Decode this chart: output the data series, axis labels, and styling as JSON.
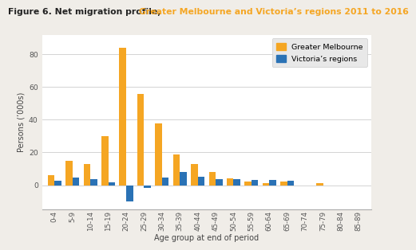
{
  "title_black": "Figure 6. Net migration profile, ",
  "title_orange": "Greater Melbourne and Victoria’s regions 2011 to 2016",
  "age_groups": [
    "0-4",
    "5-9",
    "10-14",
    "15-19",
    "20-24",
    "25-29",
    "30-34",
    "35-39",
    "40-44",
    "45-49",
    "50-54",
    "55-59",
    "60-64",
    "65-69",
    "70-74",
    "75-79",
    "80-84",
    "85-89"
  ],
  "melbourne": [
    6,
    15,
    13,
    30,
    84,
    56,
    38,
    19,
    13,
    8,
    4,
    2,
    1,
    2,
    0,
    1,
    0,
    0
  ],
  "victoria": [
    2.5,
    4.5,
    3.5,
    1.5,
    -10,
    -1.5,
    4.5,
    8,
    5,
    3.5,
    3.5,
    3,
    3,
    2.5,
    0,
    0,
    0,
    0
  ],
  "melbourne_color": "#F5A623",
  "victoria_color": "#2A72B5",
  "xlabel": "Age group at end of period",
  "ylabel": "Persons (’000s)",
  "ylim": [
    -15,
    92
  ],
  "legend_melbourne": "Greater Melbourne",
  "legend_victoria": "Victoria’s regions",
  "page_background": "#f0ede8",
  "chart_background": "#ffffff",
  "bar_width": 0.38,
  "grid_color": "#cccccc",
  "title_fontsize": 7.8,
  "axis_fontsize": 7.0,
  "tick_fontsize": 6.2
}
